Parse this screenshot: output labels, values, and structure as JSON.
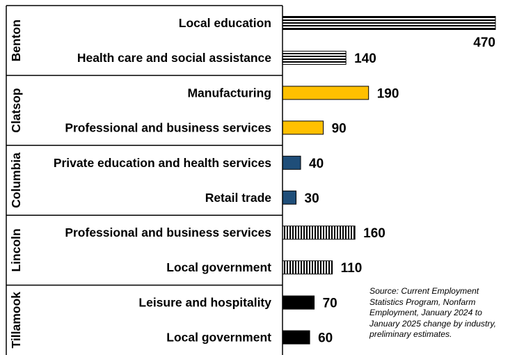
{
  "chart_data": {
    "type": "bar",
    "orientation": "horizontal",
    "title": "",
    "xlabel": "",
    "ylabel": "",
    "xlim": [
      0,
      470
    ],
    "groups": [
      {
        "name": "Benton",
        "pattern": "horizontal-stripes",
        "color": "#000000",
        "categories": [
          "Local education",
          "Health care and social assistance"
        ],
        "values": [
          470,
          140
        ]
      },
      {
        "name": "Clatsop",
        "pattern": "solid",
        "color": "#FFC000",
        "categories": [
          "Manufacturing",
          "Professional and business services"
        ],
        "values": [
          190,
          90
        ]
      },
      {
        "name": "Columbia",
        "pattern": "solid",
        "color": "#1F4E79",
        "categories": [
          "Private education and health services",
          "Retail trade"
        ],
        "values": [
          40,
          30
        ]
      },
      {
        "name": "Lincoln",
        "pattern": "vertical-stripes",
        "color": "#000000",
        "categories": [
          "Professional and business services",
          "Local government"
        ],
        "values": [
          160,
          110
        ]
      },
      {
        "name": "Tillamook",
        "pattern": "solid",
        "color": "#000000",
        "categories": [
          "Leisure and hospitality",
          "Local government"
        ],
        "values": [
          70,
          60
        ]
      }
    ],
    "annotations": [
      "Source: Current Employment Statistics Program, Nonfarm Employment, January 2024 to January 2025 change by industry, preliminary estimates."
    ],
    "grid": false,
    "legend": "none"
  },
  "source_note": "Source: Current Employment Statistics Program, Nonfarm Employment, January 2024 to January 2025 change by industry, preliminary estimates."
}
